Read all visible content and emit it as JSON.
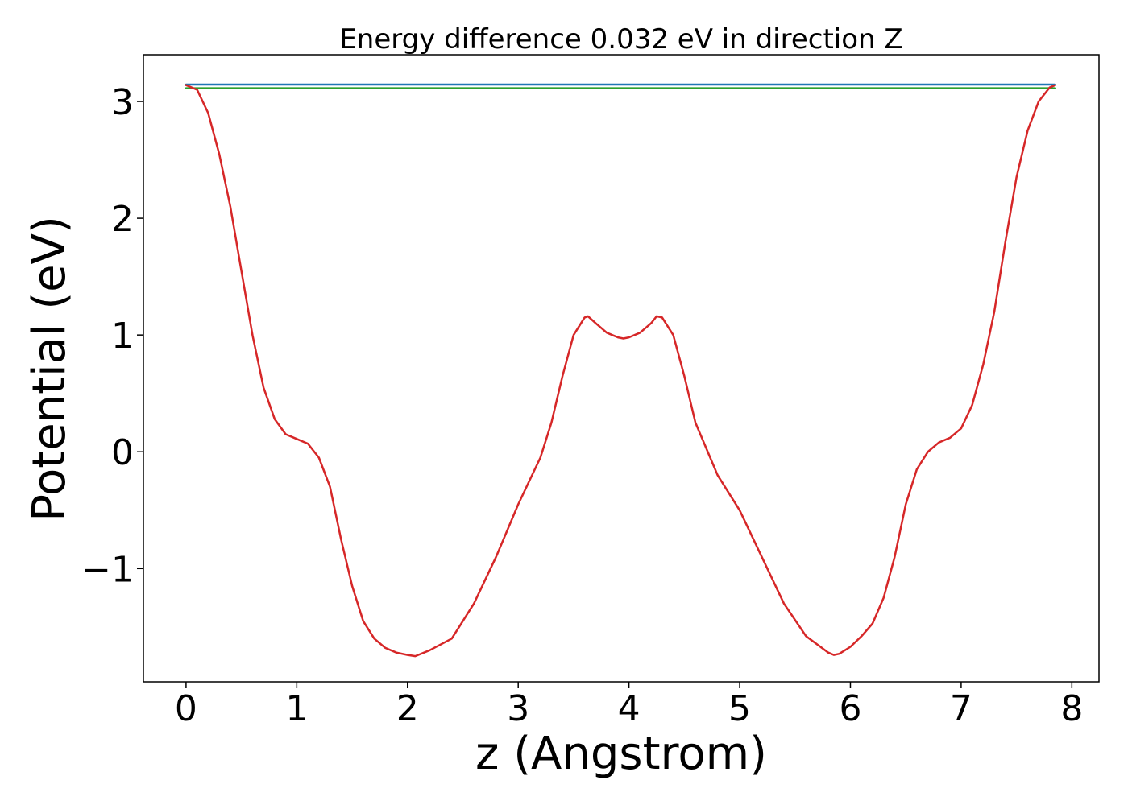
{
  "chart_data": {
    "type": "line",
    "title": "Energy difference 0.032 eV in direction Z",
    "xlabel": "z (Angstrom)",
    "ylabel": "Potential (eV)",
    "xlim": [
      -0.385,
      8.245
    ],
    "ylim": [
      -1.97,
      3.4
    ],
    "xticks": [
      0,
      1,
      2,
      3,
      4,
      5,
      6,
      7,
      8
    ],
    "xtick_labels": [
      "0",
      "1",
      "2",
      "3",
      "4",
      "5",
      "6",
      "7",
      "8"
    ],
    "yticks": [
      -1,
      0,
      1,
      2,
      3
    ],
    "ytick_labels": [
      "−1",
      "0",
      "1",
      "2",
      "3"
    ],
    "grid": false,
    "series": [
      {
        "color": "#1f77b4",
        "x": [
          0,
          7.85
        ],
        "y": [
          3.145,
          3.145
        ]
      },
      {
        "color": "#2ca02c",
        "x": [
          0,
          7.85
        ],
        "y": [
          3.113,
          3.113
        ]
      },
      {
        "color": "#d62728",
        "x": [
          0,
          0.1,
          0.2,
          0.3,
          0.4,
          0.5,
          0.6,
          0.7,
          0.8,
          0.9,
          1.0,
          1.1,
          1.2,
          1.3,
          1.4,
          1.5,
          1.6,
          1.7,
          1.8,
          1.9,
          2.0,
          2.07,
          2.2,
          2.4,
          2.6,
          2.8,
          3.0,
          3.2,
          3.3,
          3.4,
          3.5,
          3.6,
          3.63,
          3.7,
          3.8,
          3.9,
          3.95,
          4.0,
          4.1,
          4.2,
          4.25,
          4.3,
          4.4,
          4.5,
          4.6,
          4.8,
          5.0,
          5.2,
          5.4,
          5.6,
          5.8,
          5.85,
          5.9,
          6.0,
          6.1,
          6.2,
          6.3,
          6.4,
          6.5,
          6.6,
          6.7,
          6.8,
          6.9,
          7.0,
          7.1,
          7.2,
          7.3,
          7.4,
          7.5,
          7.6,
          7.7,
          7.8,
          7.85
        ],
        "y": [
          3.14,
          3.1,
          2.9,
          2.55,
          2.1,
          1.55,
          1.0,
          0.55,
          0.28,
          0.15,
          0.11,
          0.07,
          -0.05,
          -0.3,
          -0.75,
          -1.15,
          -1.45,
          -1.6,
          -1.68,
          -1.72,
          -1.74,
          -1.75,
          -1.7,
          -1.6,
          -1.3,
          -0.9,
          -0.45,
          -0.05,
          0.25,
          0.65,
          1.0,
          1.15,
          1.16,
          1.1,
          1.02,
          0.98,
          0.97,
          0.98,
          1.02,
          1.1,
          1.16,
          1.15,
          1.0,
          0.65,
          0.25,
          -0.2,
          -0.5,
          -0.9,
          -1.3,
          -1.58,
          -1.72,
          -1.74,
          -1.73,
          -1.67,
          -1.58,
          -1.47,
          -1.25,
          -0.9,
          -0.45,
          -0.15,
          0.0,
          0.08,
          0.12,
          0.2,
          0.4,
          0.75,
          1.2,
          1.8,
          2.35,
          2.75,
          3.0,
          3.12,
          3.14
        ]
      }
    ]
  }
}
